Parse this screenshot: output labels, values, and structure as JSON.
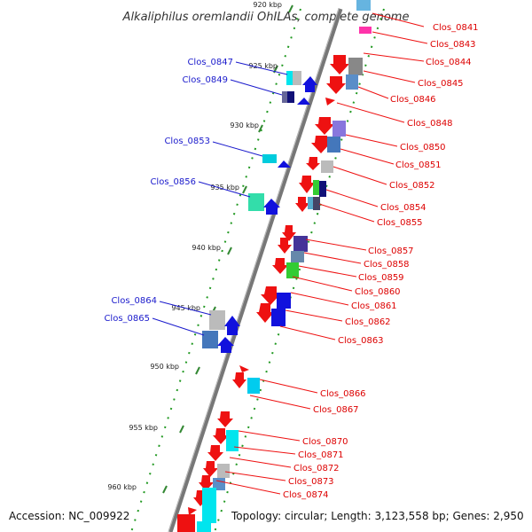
{
  "title": "Alkaliphilus oremlandii OhILAs, complete genome",
  "footer": {
    "accession": "Accession: NC_009922",
    "topology": "Topology: circular; Length: 3,123,558 bp; Genes: 2,950"
  },
  "scale_labels": [
    "920 kbp",
    "925 kbp",
    "930 kbp",
    "935 kbp",
    "940 kbp",
    "945 kbp",
    "950 kbp",
    "955 kbp",
    "960 kbp"
  ],
  "right_labels": [
    "Clos_0841",
    "Clos_0843",
    "Clos_0844",
    "Clos_0845",
    "Clos_0846",
    "Clos_0848",
    "Clos_0850",
    "Clos_0851",
    "Clos_0852",
    "Clos_0854",
    "Clos_0855",
    "Clos_0857",
    "Clos_0858",
    "Clos_0859",
    "Clos_0860",
    "Clos_0861",
    "Clos_0862",
    "Clos_0863",
    "Clos_0866",
    "Clos_0867",
    "Clos_0870",
    "Clos_0871",
    "Clos_0872",
    "Clos_0873",
    "Clos_0874"
  ],
  "left_labels": [
    "Clos_0847",
    "Clos_0849",
    "Clos_0853",
    "Clos_0856",
    "Clos_0864",
    "Clos_0865"
  ],
  "colors": {
    "forward_arrow": "#ee1111",
    "reverse_arrow": "#1111dd",
    "label_right": "#dd0000",
    "label_left": "#1a1acc",
    "tick": "#338833",
    "dot": "#229922",
    "backbone": "#777777"
  }
}
